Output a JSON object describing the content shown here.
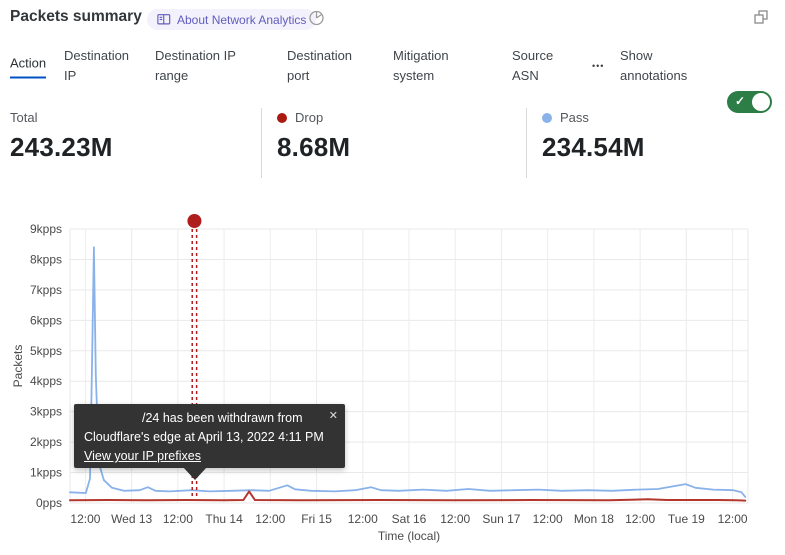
{
  "header": {
    "title": "Packets summary",
    "badge_label": "About Network Analytics"
  },
  "icons": {
    "check": "✓",
    "close": "✕",
    "more": "•••"
  },
  "tabs": {
    "items": [
      "Action",
      "Destination IP",
      "Destination IP range",
      "Destination port",
      "Mitigation system",
      "Source ASN"
    ],
    "active": "Action",
    "annotations_toggle": {
      "label": "Show annotations",
      "state": "on"
    }
  },
  "stats": [
    {
      "label": "Total",
      "value": "243.23M",
      "dot_color": null
    },
    {
      "label": "Drop",
      "value": "8.68M",
      "dot_color": "#ab1a12"
    },
    {
      "label": "Pass",
      "value": "234.54M",
      "dot_color": "#8ab2ea"
    }
  ],
  "annotation_tooltip": {
    "line1": "/24 has been withdrawn from",
    "line2": "Cloudflare's edge at April 13, 2022 4:11 PM",
    "link_label": "View your IP prefixes"
  },
  "chart_data": {
    "type": "line",
    "title": "Packets summary",
    "xlabel": "Time (local)",
    "ylabel": "Packets",
    "ylim": [
      0,
      9
    ],
    "y_unit": "kpps",
    "y_ticks": [
      "9kpps",
      "8kpps",
      "7kpps",
      "6kpps",
      "5kpps",
      "4kpps",
      "3kpps",
      "2kpps",
      "1kpps",
      "0pps"
    ],
    "x_ticks": [
      "12:00",
      "Wed 13",
      "12:00",
      "Thu 14",
      "12:00",
      "Fri 15",
      "12:00",
      "Sat 16",
      "12:00",
      "Sun 17",
      "12:00",
      "Mon 18",
      "12:00",
      "Tue 19",
      "12:00"
    ],
    "x_range_hours": [
      0,
      176
    ],
    "tick_start_hour": 4,
    "tick_interval_hours": 12,
    "grid": true,
    "legend_position": "top",
    "series": [
      {
        "name": "Pass",
        "color": "#8ab2ea",
        "points": [
          [
            0,
            0.35
          ],
          [
            4.1,
            0.33
          ],
          [
            5.2,
            0.8
          ],
          [
            5.7,
            4.5
          ],
          [
            6.2,
            8.4
          ],
          [
            6.7,
            4.2
          ],
          [
            7.5,
            1.3
          ],
          [
            8.8,
            0.75
          ],
          [
            10.9,
            0.5
          ],
          [
            14,
            0.4
          ],
          [
            18.1,
            0.42
          ],
          [
            20.2,
            0.52
          ],
          [
            22.2,
            0.4
          ],
          [
            25.9,
            0.38
          ],
          [
            31.6,
            0.42
          ],
          [
            36.2,
            0.38
          ],
          [
            41.9,
            0.4
          ],
          [
            47.1,
            0.42
          ],
          [
            51.7,
            0.4
          ],
          [
            56.4,
            0.58
          ],
          [
            58.4,
            0.45
          ],
          [
            62.6,
            0.4
          ],
          [
            68.8,
            0.38
          ],
          [
            74,
            0.42
          ],
          [
            78.1,
            0.52
          ],
          [
            80.7,
            0.42
          ],
          [
            85.3,
            0.4
          ],
          [
            91.6,
            0.44
          ],
          [
            97.7,
            0.4
          ],
          [
            103.4,
            0.46
          ],
          [
            109.1,
            0.4
          ],
          [
            115.3,
            0.42
          ],
          [
            121.6,
            0.44
          ],
          [
            127.7,
            0.4
          ],
          [
            134.5,
            0.42
          ],
          [
            140.7,
            0.4
          ],
          [
            147.4,
            0.44
          ],
          [
            152.6,
            0.46
          ],
          [
            159.8,
            0.62
          ],
          [
            162.4,
            0.5
          ],
          [
            167,
            0.44
          ],
          [
            172.2,
            0.42
          ],
          [
            174.3,
            0.35
          ],
          [
            175.3,
            0.2
          ]
        ]
      },
      {
        "name": "Drop",
        "color": "#b4372e",
        "points": [
          [
            0,
            0.09
          ],
          [
            10,
            0.1
          ],
          [
            20,
            0.09
          ],
          [
            30,
            0.1
          ],
          [
            40,
            0.09
          ],
          [
            45,
            0.1
          ],
          [
            46.5,
            0.38
          ],
          [
            48,
            0.1
          ],
          [
            60,
            0.09
          ],
          [
            80,
            0.1
          ],
          [
            100,
            0.09
          ],
          [
            120,
            0.1
          ],
          [
            140,
            0.09
          ],
          [
            150,
            0.12
          ],
          [
            155,
            0.1
          ],
          [
            168,
            0.1
          ],
          [
            173,
            0.09
          ],
          [
            175.3,
            0.08
          ]
        ]
      }
    ],
    "annotation_marker": {
      "hour": 32.3,
      "color": "#b01d1d"
    }
  }
}
